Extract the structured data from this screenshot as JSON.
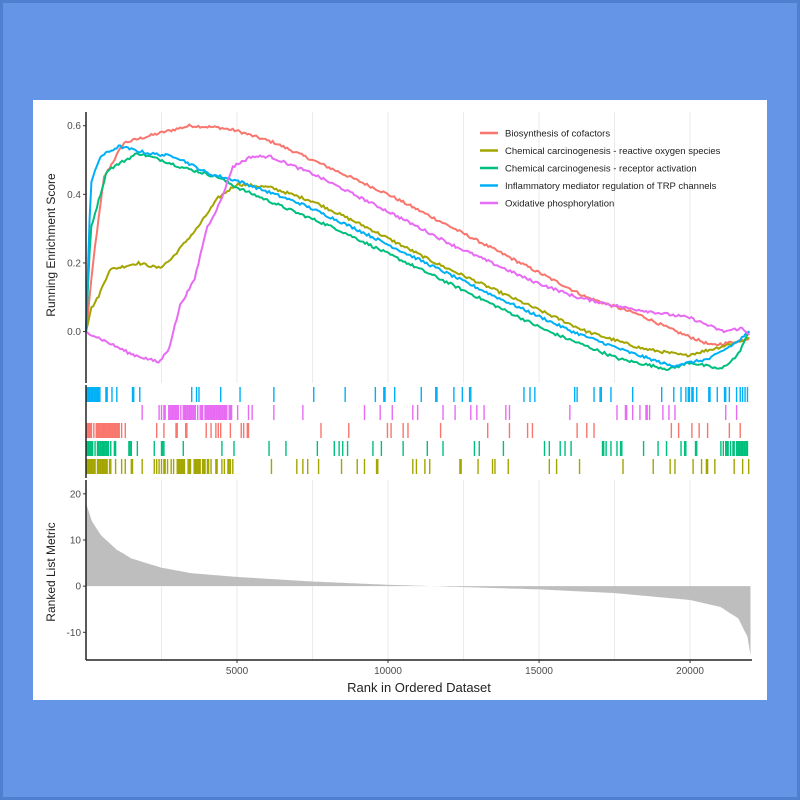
{
  "chart_data": {
    "type": "line",
    "title": "",
    "xlabel": "Rank in Ordered Dataset",
    "ylabel_top": "Running Enrichment Score",
    "ylabel_bottom": "Ranked List Metric",
    "xlim": [
      0,
      22050
    ],
    "ylim_top": [
      -0.15,
      0.64
    ],
    "ylim_bottom": [
      -16,
      23
    ],
    "x_ticks": [
      5000,
      10000,
      15000,
      20000
    ],
    "x_tick_labels": [
      "5000",
      "10000",
      "15000",
      "20000"
    ],
    "y_ticks_top": [
      0.0,
      0.2,
      0.4,
      0.6
    ],
    "y_tick_labels_top": [
      "0.0",
      "0.2",
      "0.4",
      "0.6"
    ],
    "y_ticks_bottom": [
      -10,
      0,
      10,
      20
    ],
    "y_tick_labels_bottom": [
      "-10",
      "0",
      "10",
      "20"
    ],
    "legend_position": "top-right",
    "series": [
      {
        "name": "Biosynthesis of cofactors",
        "color": "#F8766D",
        "points": [
          [
            0,
            0
          ],
          [
            300,
            0.25
          ],
          [
            600,
            0.45
          ],
          [
            1250,
            0.55
          ],
          [
            2500,
            0.58
          ],
          [
            3440,
            0.6
          ],
          [
            4380,
            0.595
          ],
          [
            5000,
            0.585
          ],
          [
            6250,
            0.55
          ],
          [
            7500,
            0.5
          ],
          [
            10000,
            0.4
          ],
          [
            12190,
            0.3
          ],
          [
            14380,
            0.2
          ],
          [
            16570,
            0.1
          ],
          [
            18290,
            0.05
          ],
          [
            19540,
            0.0
          ],
          [
            20710,
            -0.04
          ],
          [
            21500,
            -0.03
          ],
          [
            21960,
            -0.02
          ]
        ]
      },
      {
        "name": "Chemical carcinogenesis - reactive oxygen species",
        "color": "#A3A500",
        "points": [
          [
            0,
            0
          ],
          [
            160,
            0.065
          ],
          [
            400,
            0.1
          ],
          [
            780,
            0.18
          ],
          [
            1720,
            0.2
          ],
          [
            2420,
            0.185
          ],
          [
            2810,
            0.21
          ],
          [
            3280,
            0.26
          ],
          [
            3670,
            0.3
          ],
          [
            4380,
            0.39
          ],
          [
            5000,
            0.43
          ],
          [
            6100,
            0.42
          ],
          [
            7500,
            0.38
          ],
          [
            9380,
            0.3
          ],
          [
            11570,
            0.2
          ],
          [
            14070,
            0.1
          ],
          [
            16570,
            0.0
          ],
          [
            18440,
            -0.05
          ],
          [
            19850,
            -0.07
          ],
          [
            20790,
            -0.05
          ],
          [
            21960,
            -0.02
          ]
        ]
      },
      {
        "name": "Chemical carcinogenesis - receptor activation",
        "color": "#00BF7D",
        "points": [
          [
            0,
            0
          ],
          [
            156,
            0.3
          ],
          [
            700,
            0.47
          ],
          [
            1720,
            0.52
          ],
          [
            2500,
            0.5
          ],
          [
            3130,
            0.48
          ],
          [
            4380,
            0.45
          ],
          [
            5000,
            0.42
          ],
          [
            6880,
            0.35
          ],
          [
            8280,
            0.3
          ],
          [
            10630,
            0.2
          ],
          [
            12970,
            0.1
          ],
          [
            15320,
            0.0
          ],
          [
            17660,
            -0.08
          ],
          [
            19300,
            -0.11
          ],
          [
            20000,
            -0.09
          ],
          [
            21020,
            -0.11
          ],
          [
            21570,
            -0.07
          ],
          [
            21960,
            0.0
          ]
        ]
      },
      {
        "name": "Inflammatory mediator regulation of TRP channels",
        "color": "#00B0F6",
        "points": [
          [
            0,
            0
          ],
          [
            156,
            0.43
          ],
          [
            470,
            0.51
          ],
          [
            1090,
            0.54
          ],
          [
            2030,
            0.52
          ],
          [
            2970,
            0.51
          ],
          [
            4060,
            0.46
          ],
          [
            5000,
            0.44
          ],
          [
            7190,
            0.37
          ],
          [
            8910,
            0.3
          ],
          [
            11250,
            0.2
          ],
          [
            13600,
            0.1
          ],
          [
            16100,
            0.0
          ],
          [
            17970,
            -0.06
          ],
          [
            19380,
            -0.1
          ],
          [
            20630,
            -0.08
          ],
          [
            21570,
            -0.03
          ],
          [
            21960,
            0.0
          ]
        ]
      },
      {
        "name": "Oxidative phosphorylation",
        "color": "#E76BF3",
        "points": [
          [
            0,
            0
          ],
          [
            1480,
            -0.065
          ],
          [
            2420,
            -0.09
          ],
          [
            2740,
            -0.05
          ],
          [
            3130,
            0.08
          ],
          [
            3590,
            0.15
          ],
          [
            3990,
            0.3
          ],
          [
            4460,
            0.38
          ],
          [
            4850,
            0.48
          ],
          [
            5470,
            0.51
          ],
          [
            6100,
            0.51
          ],
          [
            7500,
            0.46
          ],
          [
            10000,
            0.35
          ],
          [
            12190,
            0.25
          ],
          [
            14690,
            0.15
          ],
          [
            16250,
            0.1
          ],
          [
            17820,
            0.07
          ],
          [
            20000,
            0.04
          ],
          [
            21100,
            0.0
          ],
          [
            21700,
            0.01
          ],
          [
            21960,
            -0.01
          ]
        ]
      }
    ],
    "ranked_metric": {
      "color": "#BEBEBE",
      "points": [
        [
          0,
          18
        ],
        [
          200,
          14
        ],
        [
          500,
          11
        ],
        [
          1000,
          8
        ],
        [
          1500,
          6
        ],
        [
          2500,
          4
        ],
        [
          3500,
          2.8
        ],
        [
          5000,
          2
        ],
        [
          7500,
          1
        ],
        [
          10000,
          0.3
        ],
        [
          11500,
          0
        ],
        [
          13000,
          -0.3
        ],
        [
          15000,
          -0.7
        ],
        [
          17500,
          -1.5
        ],
        [
          20000,
          -3
        ],
        [
          21000,
          -4.5
        ],
        [
          21600,
          -7
        ],
        [
          21900,
          -11
        ],
        [
          22000,
          -15
        ]
      ]
    },
    "rug_order": [
      3,
      4,
      0,
      2,
      1
    ]
  }
}
